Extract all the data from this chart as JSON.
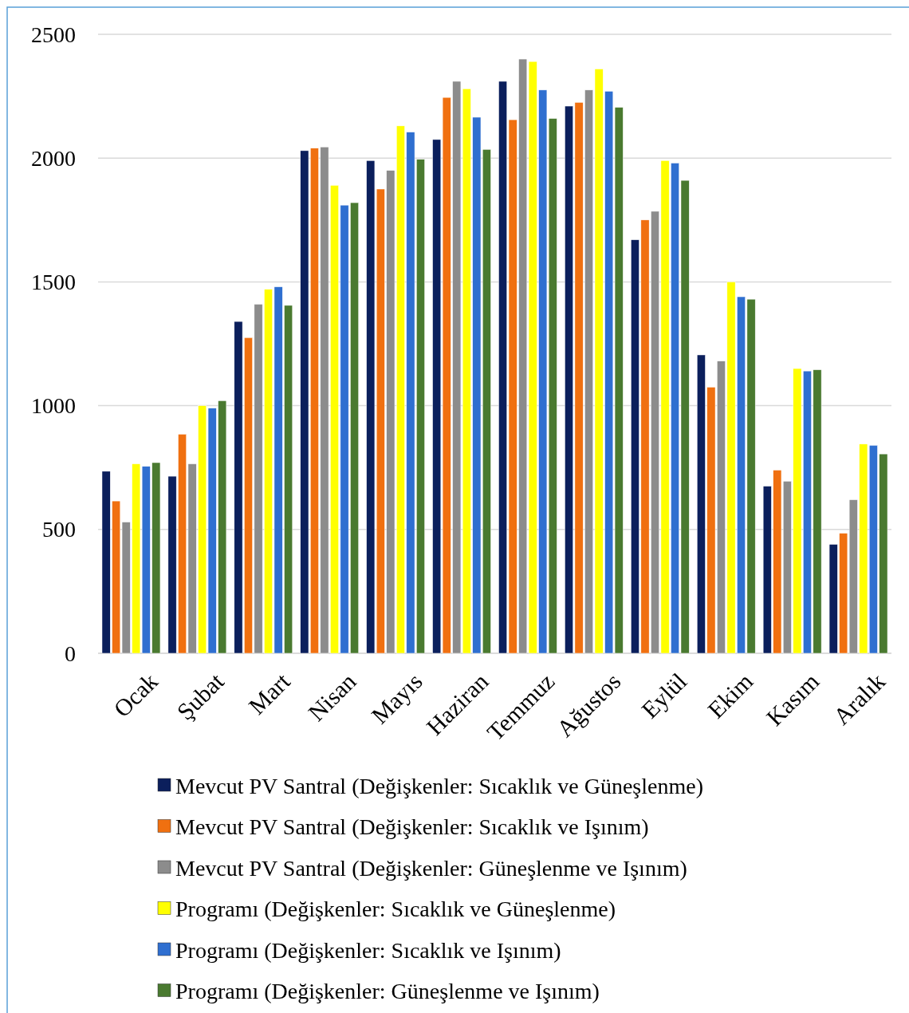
{
  "chart_data": {
    "type": "bar",
    "categories": [
      "Ocak",
      "Şubat",
      "Mart",
      "Nisan",
      "Mayıs",
      "Haziran",
      "Temmuz",
      "Ağustos",
      "Eylül",
      "Ekim",
      "Kasım",
      "Aralık"
    ],
    "series": [
      {
        "name": "Mevcut PV Santral (Değişkenler: Sıcaklık ve Güneşlenme)",
        "color": "#0b1f5c",
        "values": [
          735,
          715,
          1340,
          2030,
          1990,
          2075,
          2310,
          2210,
          1670,
          1205,
          675,
          440
        ]
      },
      {
        "name": "Mevcut PV Santral (Değişkenler: Sıcaklık ve Işınım)",
        "color": "#f07010",
        "values": [
          615,
          885,
          1275,
          2040,
          1875,
          2245,
          2155,
          2225,
          1750,
          1075,
          740,
          485
        ]
      },
      {
        "name": "Mevcut PV Santral (Değişkenler: Güneşlenme ve Işınım)",
        "color": "#8c8c8c",
        "values": [
          530,
          765,
          1410,
          2045,
          1950,
          2310,
          2400,
          2275,
          1785,
          1180,
          695,
          620
        ]
      },
      {
        "name": "Programı (Değişkenler: Sıcaklık ve Güneşlenme)",
        "color": "#ffff00",
        "values": [
          765,
          1000,
          1470,
          1890,
          2130,
          2280,
          2390,
          2360,
          1990,
          1500,
          1150,
          845
        ]
      },
      {
        "name": "Programı (Değişkenler: Sıcaklık ve Işınım)",
        "color": "#2f6fd0",
        "values": [
          755,
          990,
          1480,
          1810,
          2105,
          2165,
          2275,
          2270,
          1980,
          1440,
          1140,
          840
        ]
      },
      {
        "name": "Programı (Değişkenler: Güneşlenme ve Işınım)",
        "color": "#4a7a30",
        "values": [
          770,
          1020,
          1405,
          1820,
          1995,
          2035,
          2160,
          2205,
          1910,
          1430,
          1145,
          805
        ]
      }
    ],
    "ylim": [
      0,
      2500
    ],
    "yticks": [
      0,
      500,
      1000,
      1500,
      2000,
      2500
    ],
    "grid": "y",
    "legend": "bottom"
  }
}
